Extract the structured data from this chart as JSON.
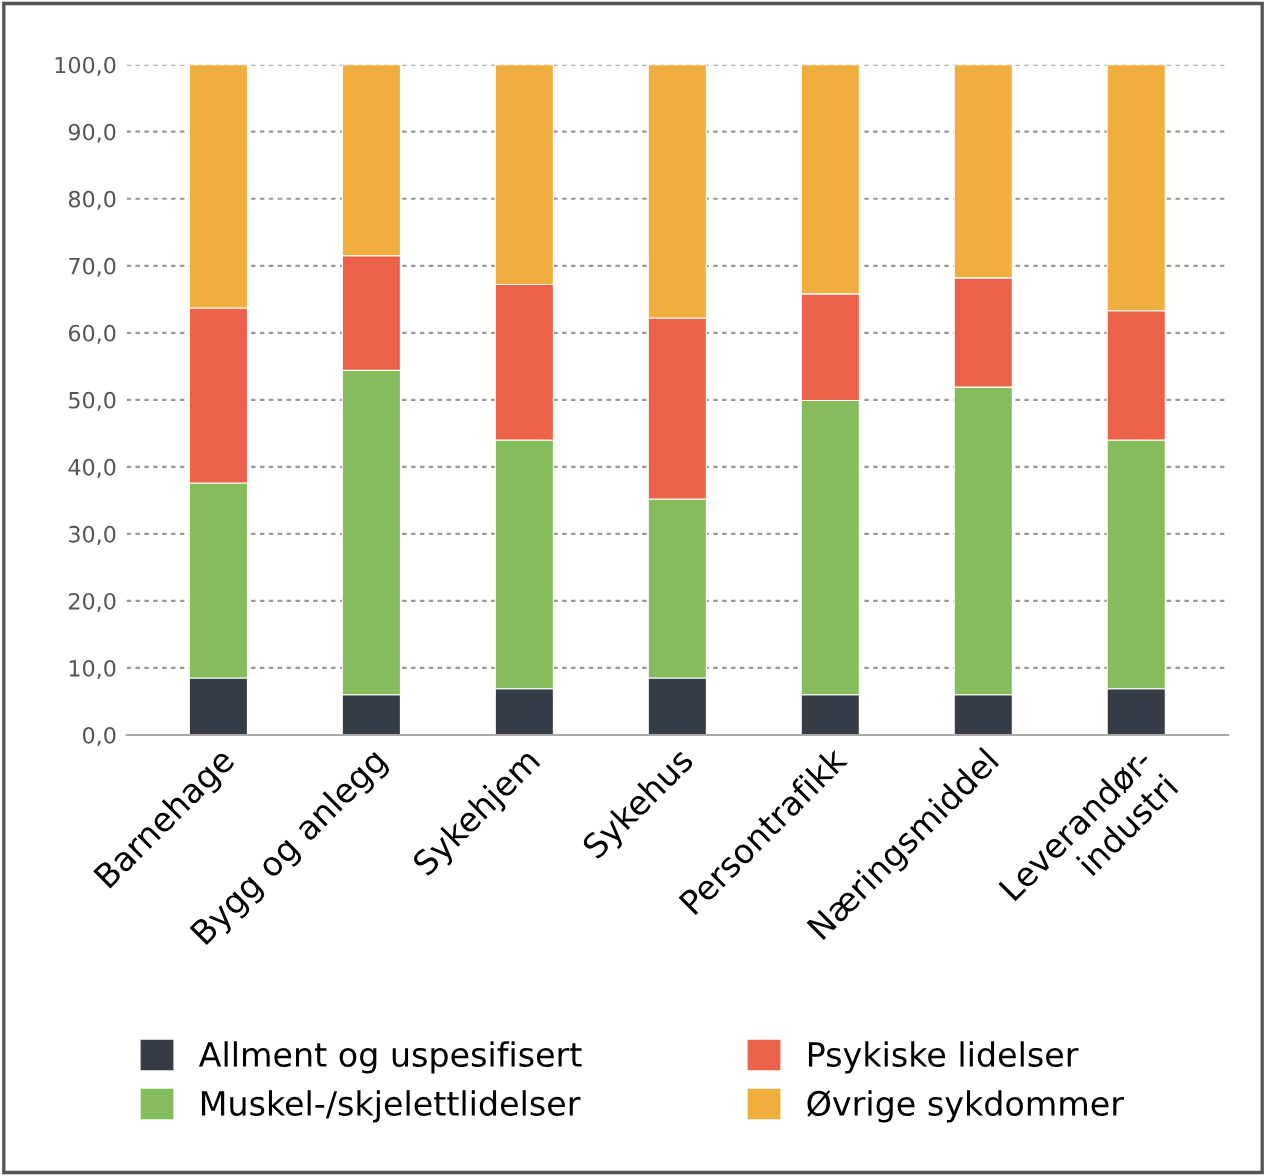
{
  "chart_data": {
    "type": "bar",
    "stacked": true,
    "categories": [
      "Barnehage",
      "Bygg og anlegg",
      "Sykehjem",
      "Sykehus",
      "Persontrafikk",
      "Næringsmiddel",
      "Leverandør-\nindustri"
    ],
    "series": [
      {
        "name": "Allment og uspesifisert",
        "color": "#363c45",
        "values": [
          8.5,
          6.0,
          6.9,
          8.5,
          6.0,
          6.0,
          6.9
        ]
      },
      {
        "name": "Muskel-/skjelettlidelser",
        "color": "#85bd5d",
        "values": [
          29.1,
          48.4,
          37.1,
          26.7,
          43.9,
          45.9,
          37.1
        ]
      },
      {
        "name": "Psykiske lidelser",
        "color": "#ec6249",
        "values": [
          26.1,
          17.1,
          23.2,
          27.0,
          15.9,
          16.3,
          19.3
        ]
      },
      {
        "name": "Øvrige sykdommer",
        "color": "#f0ae3e",
        "values": [
          36.3,
          28.5,
          32.8,
          37.8,
          34.2,
          31.8,
          36.7
        ]
      }
    ],
    "ylim": [
      0,
      100
    ],
    "yticks": [
      {
        "value": 0,
        "label": "0,0"
      },
      {
        "value": 10,
        "label": "10,0"
      },
      {
        "value": 20,
        "label": "20,0"
      },
      {
        "value": 30,
        "label": "30,0"
      },
      {
        "value": 40,
        "label": "40,0"
      },
      {
        "value": 50,
        "label": "50,0"
      },
      {
        "value": 60,
        "label": "60,0"
      },
      {
        "value": 70,
        "label": "70,0"
      },
      {
        "value": 80,
        "label": "80,0"
      },
      {
        "value": 90,
        "label": "90,0"
      },
      {
        "value": 100,
        "label": "100,0"
      }
    ],
    "grid": "y",
    "legend": "bottom"
  }
}
